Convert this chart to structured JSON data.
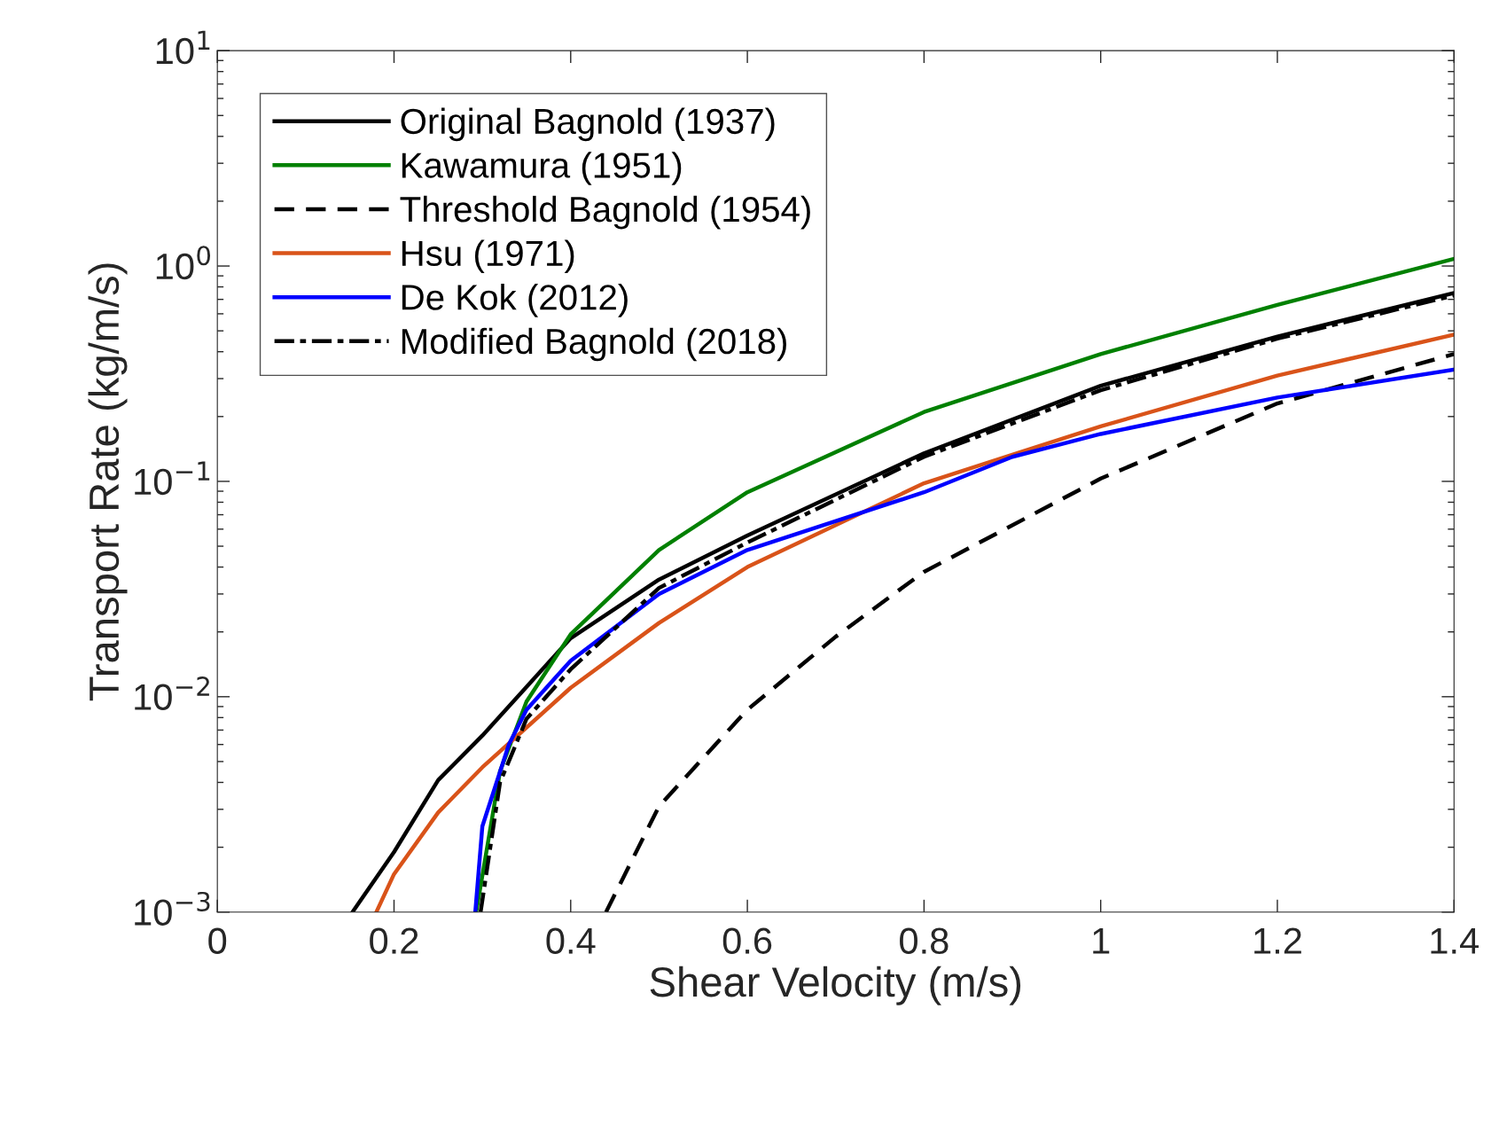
{
  "chart_data": {
    "type": "line",
    "xlabel": "Shear Velocity (m/s)",
    "ylabel": "Transport Rate (kg/m/s)",
    "log": "y",
    "grid": false,
    "legend": "top left",
    "xlim": [
      0,
      1.4
    ],
    "xticks": [
      0,
      0.2,
      0.4,
      0.6,
      0.8,
      1,
      1.2,
      1.4
    ],
    "ylim": [
      0.001,
      10
    ],
    "yticks": [
      {
        "value": 0.001,
        "label": "10$^{−3}$"
      },
      {
        "value": 0.01,
        "label": "10$^{−2}$"
      },
      {
        "value": 0.1,
        "label": "10$^{−1}$"
      },
      {
        "value": 1,
        "label": "10$^{0}$"
      },
      {
        "value": 10,
        "label": "10$^{1}$"
      }
    ],
    "series": [
      {
        "name": "Original Bagnold (1937)",
        "color": "#000000",
        "line_style": "solid",
        "x": [
          0.153,
          0.2,
          0.25,
          0.3,
          0.4,
          0.5,
          0.6,
          0.8,
          1.0,
          1.2,
          1.4
        ],
        "values": [
          0.001,
          0.0019,
          0.0041,
          0.0066,
          0.0187,
          0.035,
          0.056,
          0.135,
          0.278,
          0.47,
          0.75
        ]
      },
      {
        "name": "Kawamura (1951)",
        "color": "#008000",
        "line_style": "solid",
        "x": [
          0.293,
          0.32,
          0.35,
          0.4,
          0.5,
          0.6,
          0.8,
          1.0,
          1.2,
          1.4
        ],
        "values": [
          0.001,
          0.0045,
          0.0095,
          0.0195,
          0.048,
          0.089,
          0.21,
          0.39,
          0.66,
          1.08
        ]
      },
      {
        "name": "Threshold Bagnold (1954)",
        "color": "#000000",
        "line_style": "dashed",
        "x": [
          0.44,
          0.5,
          0.6,
          0.7,
          0.8,
          1.0,
          1.2,
          1.4
        ],
        "values": [
          0.001,
          0.0031,
          0.0087,
          0.019,
          0.038,
          0.103,
          0.23,
          0.39
        ]
      },
      {
        "name": "Hsu (1971)",
        "color": "#d95319",
        "line_style": "solid",
        "x": [
          0.18,
          0.2,
          0.25,
          0.3,
          0.4,
          0.5,
          0.6,
          0.8,
          0.9,
          1.0,
          1.2,
          1.4
        ],
        "values": [
          0.001,
          0.0015,
          0.0029,
          0.0047,
          0.011,
          0.022,
          0.04,
          0.098,
          0.133,
          0.18,
          0.31,
          0.48
        ]
      },
      {
        "name": "De Kok (2012)",
        "color": "#0000ff",
        "line_style": "solid",
        "x": [
          0.292,
          0.3,
          0.33,
          0.35,
          0.4,
          0.5,
          0.6,
          0.8,
          0.9,
          1.0,
          1.2,
          1.4
        ],
        "values": [
          0.001,
          0.0025,
          0.006,
          0.0087,
          0.0147,
          0.03,
          0.048,
          0.089,
          0.13,
          0.166,
          0.245,
          0.33
        ]
      },
      {
        "name": "Modified Bagnold (2018)",
        "color": "#000000",
        "line_style": "dashdot",
        "x": [
          0.298,
          0.32,
          0.35,
          0.4,
          0.5,
          0.6,
          0.8,
          1.0,
          1.2,
          1.4
        ],
        "values": [
          0.001,
          0.004,
          0.0079,
          0.0134,
          0.032,
          0.052,
          0.13,
          0.265,
          0.46,
          0.73
        ]
      }
    ]
  }
}
